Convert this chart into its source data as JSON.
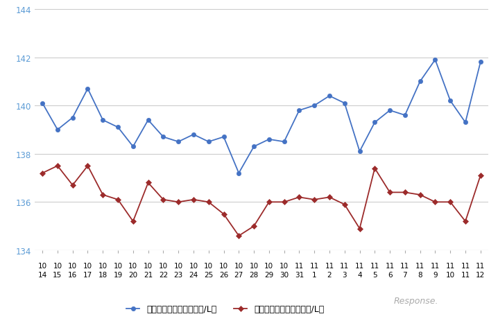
{
  "x_labels_row1": [
    "10",
    "10",
    "10",
    "10",
    "10",
    "10",
    "10",
    "10",
    "10",
    "10",
    "10",
    "10",
    "10",
    "10",
    "10",
    "10",
    "10",
    "11",
    "11",
    "11",
    "11",
    "11",
    "11",
    "11",
    "11",
    "11",
    "11",
    "11",
    "11",
    "11"
  ],
  "x_labels_row2": [
    "14",
    "15",
    "16",
    "17",
    "18",
    "19",
    "20",
    "21",
    "22",
    "23",
    "24",
    "25",
    "26",
    "27",
    "28",
    "29",
    "30",
    "31",
    "1",
    "2",
    "3",
    "4",
    "5",
    "6",
    "7",
    "8",
    "9",
    "10",
    "11",
    "12"
  ],
  "blue_values": [
    140.1,
    139.0,
    139.5,
    140.7,
    139.4,
    139.1,
    138.3,
    139.4,
    138.7,
    138.5,
    138.8,
    138.5,
    138.7,
    137.2,
    138.3,
    138.6,
    138.5,
    139.8,
    140.0,
    140.4,
    140.1,
    138.1,
    139.3,
    139.8,
    139.6,
    141.0,
    141.9,
    140.2,
    139.3,
    141.8
  ],
  "red_values": [
    137.2,
    137.5,
    136.7,
    137.5,
    136.3,
    136.1,
    135.2,
    136.8,
    136.1,
    136.0,
    136.1,
    136.0,
    135.5,
    134.6,
    135.0,
    136.0,
    136.0,
    136.2,
    136.1,
    136.2,
    135.9,
    134.9,
    137.4,
    136.4,
    136.4,
    136.3,
    136.0,
    136.0,
    135.2,
    137.1
  ],
  "ylim": [
    134,
    144
  ],
  "yticks": [
    134,
    136,
    138,
    140,
    142,
    144
  ],
  "blue_color": "#4472C4",
  "red_color": "#9C2B2B",
  "blue_label": "レギュラー看板価格（円/L）",
  "red_label": "レギュラー実売価格（円/L）",
  "bg_color": "#FFFFFF",
  "grid_color": "#CCCCCC",
  "ytick_color": "#5B9BD5",
  "xtick_color": "#000000"
}
